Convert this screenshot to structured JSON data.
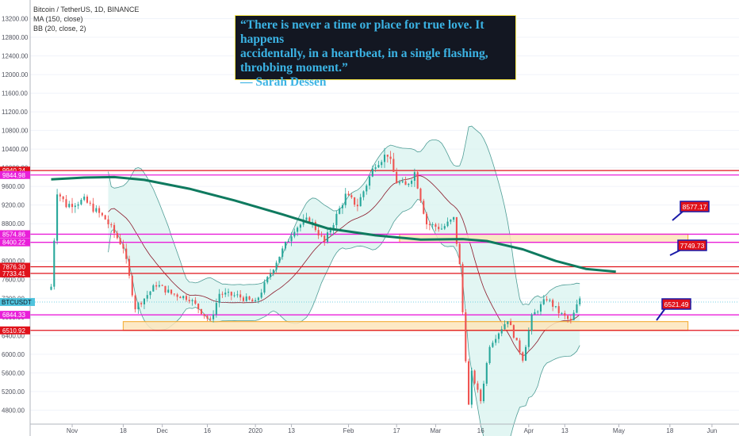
{
  "legend": {
    "title": "Bitcoin / TetherUS, 1D, BINANCE",
    "ma": "MA (150, close)",
    "bb": "BB (20, close, 2)"
  },
  "quote": {
    "line1": "“There is never a time or place for true love. It happens",
    "line2": "accidentally, in a heartbeat, in a single flashing,",
    "line3": "throbbing moment.”",
    "line4": "— Sarah Dessen"
  },
  "colors": {
    "up": "#26a69a",
    "down": "#ef5350",
    "ma": "#0f7a5f",
    "bb_fill": "#d8f3ef",
    "bb_line": "#4f9d96",
    "basis": "#8b1a2b",
    "red_level": "#e0121b",
    "magenta_level": "#e91fd9",
    "zone_fill": "#fde6bc",
    "zone_stroke": "#f5a623"
  },
  "chart_data": {
    "type": "candlestick",
    "symbol": "BTCUSDT",
    "ylim": [
      4500,
      13600
    ],
    "y_ticks": [
      "13200.00",
      "12800.00",
      "12400.00",
      "12000.00",
      "11600.00",
      "11200.00",
      "10800.00",
      "10400.00",
      "10000.00",
      "9600.00",
      "9200.00",
      "8800.00",
      "8400.00",
      "8000.00",
      "7600.00",
      "7200.00",
      "6800.00",
      "6400.00",
      "6000.00",
      "5600.00",
      "5200.00",
      "4800.00"
    ],
    "x_ticks": [
      "Nov",
      "18",
      "Dec",
      "16",
      "2020",
      "13",
      "Feb",
      "17",
      "Mar",
      "16",
      "Apr",
      "13",
      "May",
      "18",
      "Jun"
    ],
    "horizontal_levels": [
      {
        "label": "9940.24",
        "value": 9940.24,
        "color": "red"
      },
      {
        "label": "9844.98",
        "value": 9844.98,
        "color": "magenta"
      },
      {
        "label": "8574.86",
        "value": 8574.86,
        "color": "magenta"
      },
      {
        "label": "8400.22",
        "value": 8400.22,
        "color": "magenta"
      },
      {
        "label": "7876.30",
        "value": 7876.3,
        "color": "red"
      },
      {
        "label": "7733.41",
        "value": 7733.41,
        "color": "red"
      },
      {
        "label": "6844.33",
        "value": 6844.33,
        "color": "magenta"
      },
      {
        "label": "6510.92",
        "value": 6510.92,
        "color": "red"
      }
    ],
    "zones": [
      {
        "from": 8400.22,
        "to": 8574.86
      },
      {
        "from": 6510.92,
        "to": 6700
      }
    ],
    "callouts": [
      "8577.17",
      "7749.73",
      "6521.49"
    ],
    "current_price": 7120,
    "anchors": [
      {
        "date": "2019-10-25",
        "close": 7450
      },
      {
        "date": "2019-10-27",
        "close": 9500
      },
      {
        "date": "2019-10-30",
        "close": 9200
      },
      {
        "date": "2019-11-05",
        "close": 9300
      },
      {
        "date": "2019-11-12",
        "close": 8900
      },
      {
        "date": "2019-11-18",
        "close": 8300
      },
      {
        "date": "2019-11-22",
        "close": 7000
      },
      {
        "date": "2019-11-25",
        "close": 7200
      },
      {
        "date": "2019-11-29",
        "close": 7500
      },
      {
        "date": "2019-12-04",
        "close": 7300
      },
      {
        "date": "2019-12-10",
        "close": 7200
      },
      {
        "date": "2019-12-17",
        "close": 6700
      },
      {
        "date": "2019-12-20",
        "close": 7300
      },
      {
        "date": "2019-12-26",
        "close": 7250
      },
      {
        "date": "2020-01-01",
        "close": 7100
      },
      {
        "date": "2020-01-08",
        "close": 8000
      },
      {
        "date": "2020-01-14",
        "close": 8700
      },
      {
        "date": "2020-01-19",
        "close": 8900
      },
      {
        "date": "2020-01-24",
        "close": 8400
      },
      {
        "date": "2020-01-31",
        "close": 9400
      },
      {
        "date": "2020-02-04",
        "close": 9200
      },
      {
        "date": "2020-02-10",
        "close": 10100
      },
      {
        "date": "2020-02-14",
        "close": 10300
      },
      {
        "date": "2020-02-17",
        "close": 9700
      },
      {
        "date": "2020-02-20",
        "close": 9600
      },
      {
        "date": "2020-02-23",
        "close": 9900
      },
      {
        "date": "2020-02-27",
        "close": 8800
      },
      {
        "date": "2020-03-03",
        "close": 8700
      },
      {
        "date": "2020-03-07",
        "close": 8900
      },
      {
        "date": "2020-03-09",
        "close": 7900
      },
      {
        "date": "2020-03-12",
        "close": 4900
      },
      {
        "date": "2020-03-13",
        "close": 5600
      },
      {
        "date": "2020-03-16",
        "close": 5000
      },
      {
        "date": "2020-03-19",
        "close": 6200
      },
      {
        "date": "2020-03-25",
        "close": 6750
      },
      {
        "date": "2020-03-30",
        "close": 5900
      },
      {
        "date": "2020-04-02",
        "close": 6800
      },
      {
        "date": "2020-04-07",
        "close": 7200
      },
      {
        "date": "2020-04-11",
        "close": 6900
      },
      {
        "date": "2020-04-15",
        "close": 6700
      },
      {
        "date": "2020-04-18",
        "close": 7200
      }
    ]
  }
}
